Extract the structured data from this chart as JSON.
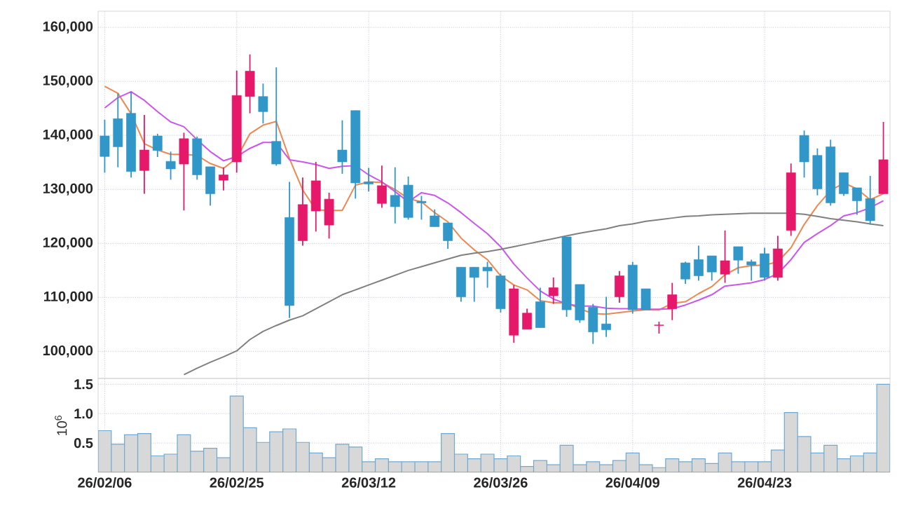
{
  "chart_data": [
    {
      "type": "candlestick",
      "ohlc": [
        [
          139900,
          142900,
          133100,
          136100
        ],
        [
          143100,
          147800,
          134100,
          137900
        ],
        [
          144100,
          148100,
          132200,
          133300
        ],
        [
          133500,
          143800,
          129200,
          137300
        ],
        [
          139900,
          140300,
          136000,
          137200
        ],
        [
          135200,
          137000,
          131800,
          133800
        ],
        [
          134700,
          140500,
          126100,
          139400
        ],
        [
          139400,
          139800,
          131800,
          132700
        ],
        [
          134200,
          134200,
          127000,
          129200
        ],
        [
          131700,
          134100,
          129800,
          132700
        ],
        [
          135100,
          152000,
          133100,
          147400
        ],
        [
          147200,
          155000,
          144100,
          151900
        ],
        [
          147200,
          149600,
          142200,
          144400
        ],
        [
          138900,
          152600,
          134400,
          134700
        ],
        [
          124800,
          131400,
          106200,
          108500
        ],
        [
          120500,
          132200,
          119600,
          127200
        ],
        [
          126000,
          135100,
          122200,
          131600
        ],
        [
          123400,
          129400,
          120900,
          128200
        ],
        [
          137300,
          142800,
          132900,
          135100
        ],
        [
          144600,
          144600,
          128300,
          131200
        ],
        [
          131400,
          134000,
          129600,
          131000
        ],
        [
          127400,
          134400,
          126600,
          130700
        ],
        [
          128900,
          134100,
          123700,
          126800
        ],
        [
          130800,
          132400,
          124400,
          124800
        ],
        [
          127800,
          128800,
          124400,
          127500
        ],
        [
          125100,
          126300,
          123100,
          123100
        ],
        [
          123800,
          123800,
          119000,
          120500
        ],
        [
          115600,
          115600,
          109200,
          110100
        ],
        [
          115600,
          115600,
          109200,
          113700
        ],
        [
          115600,
          116600,
          111800,
          114900
        ],
        [
          114000,
          114400,
          107200,
          107900
        ],
        [
          103000,
          112300,
          101600,
          111600
        ],
        [
          104100,
          107900,
          104100,
          107100
        ],
        [
          109200,
          111800,
          104400,
          104400
        ],
        [
          110300,
          113700,
          108800,
          111800
        ],
        [
          121200,
          121200,
          106400,
          107700
        ],
        [
          112400,
          112400,
          105300,
          105800
        ],
        [
          108200,
          108800,
          101400,
          103600
        ],
        [
          105100,
          110100,
          102700,
          104000
        ],
        [
          110100,
          114900,
          109000,
          114000
        ],
        [
          116000,
          116600,
          107000,
          107700
        ],
        [
          111600,
          111600,
          107700,
          107700
        ],
        [
          104800,
          105500,
          103300,
          104900
        ],
        [
          107900,
          112700,
          105800,
          110500
        ],
        [
          116400,
          116600,
          112500,
          113400
        ],
        [
          117000,
          119600,
          113100,
          114000
        ],
        [
          117700,
          117700,
          113100,
          114700
        ],
        [
          114300,
          122400,
          112700,
          116800
        ],
        [
          119400,
          119400,
          114400,
          116900
        ],
        [
          116600,
          117000,
          113100,
          116000
        ],
        [
          118100,
          119200,
          113100,
          113700
        ],
        [
          113700,
          121400,
          113100,
          119000
        ],
        [
          122400,
          134800,
          121400,
          133100
        ],
        [
          140000,
          140900,
          132200,
          135100
        ],
        [
          136300,
          137600,
          128900,
          130100
        ],
        [
          137900,
          139200,
          127000,
          127500
        ],
        [
          133100,
          133100,
          128800,
          129200
        ],
        [
          130300,
          130300,
          125300,
          127900
        ],
        [
          128300,
          132500,
          123500,
          124200
        ],
        [
          129200,
          142500,
          129200,
          135500
        ]
      ],
      "colors": [
        "#3196c8",
        "#3196c8",
        "#3196c8",
        "#e6186a",
        "#3196c8",
        "#3196c8",
        "#e6186a",
        "#3196c8",
        "#3196c8",
        "#e6186a",
        "#e6186a",
        "#e6186a",
        "#3196c8",
        "#3196c8",
        "#3196c8",
        "#e6186a",
        "#e6186a",
        "#e6186a",
        "#3196c8",
        "#3196c8",
        "#3196c8",
        "#e6186a",
        "#3196c8",
        "#3196c8",
        "#3196c8",
        "#3196c8",
        "#3196c8",
        "#3196c8",
        "#3196c8",
        "#3196c8",
        "#3196c8",
        "#e6186a",
        "#e6186a",
        "#3196c8",
        "#e6186a",
        "#3196c8",
        "#3196c8",
        "#3196c8",
        "#3196c8",
        "#e6186a",
        "#3196c8",
        "#3196c8",
        "#e6186a",
        "#e6186a",
        "#3196c8",
        "#3196c8",
        "#3196c8",
        "#e6186a",
        "#3196c8",
        "#3196c8",
        "#3196c8",
        "#e6186a",
        "#e6186a",
        "#3196c8",
        "#3196c8",
        "#3196c8",
        "#3196c8",
        "#3196c8",
        "#3196c8",
        "#e6186a"
      ],
      "series": [
        {
          "type": "line",
          "color": "#ee8850",
          "values": [
            149100,
            147800,
            144000,
            138500,
            137300,
            136500,
            136500,
            136300,
            134800,
            133900,
            135800,
            140300,
            141900,
            142600,
            135700,
            129900,
            126200,
            126100,
            126100,
            130800,
            131400,
            131300,
            130000,
            128300,
            127700,
            125700,
            124000,
            121000,
            118800,
            117000,
            114000,
            112300,
            111400,
            109400,
            109000,
            109000,
            107900,
            107000,
            106900,
            107200,
            107500,
            107700,
            107700,
            108900,
            109200,
            110700,
            112000,
            114200,
            115500,
            115900,
            116000,
            116600,
            119200,
            123500,
            127000,
            129800,
            131200,
            130100,
            128100,
            129200
          ]
        },
        {
          "type": "line",
          "color": "#cc55ee",
          "values": [
            145100,
            147000,
            148100,
            146500,
            144400,
            142500,
            141600,
            139200,
            137000,
            135300,
            136100,
            137600,
            138700,
            138700,
            135500,
            135100,
            134600,
            133900,
            134300,
            134400,
            132700,
            131400,
            129600,
            127700,
            129400,
            128900,
            127500,
            125700,
            123700,
            121800,
            119400,
            116200,
            113600,
            111200,
            109700,
            108800,
            108400,
            108400,
            108000,
            107900,
            107900,
            107800,
            107800,
            107900,
            108600,
            109500,
            110500,
            112100,
            112400,
            112700,
            113300,
            114400,
            117000,
            120200,
            121800,
            123300,
            125100,
            125700,
            126600,
            127900
          ]
        },
        {
          "type": "line",
          "color": "#808080",
          "values": [
            null,
            null,
            null,
            null,
            null,
            null,
            95700,
            96900,
            98000,
            99000,
            100100,
            102200,
            103700,
            104800,
            105800,
            106600,
            107900,
            109200,
            110500,
            111400,
            112300,
            113200,
            114100,
            115000,
            115700,
            116400,
            117100,
            117800,
            118200,
            118500,
            118900,
            119400,
            119900,
            120400,
            120900,
            121400,
            121900,
            122300,
            122700,
            123300,
            123600,
            124100,
            124400,
            124700,
            125000,
            125100,
            125300,
            125400,
            125500,
            125600,
            125600,
            125600,
            125600,
            125400,
            125000,
            124600,
            124300,
            124000,
            123600,
            123300
          ]
        }
      ],
      "ylim": [
        95000,
        163000
      ],
      "yticks": [
        {
          "value": 100000,
          "label": "100,000"
        },
        {
          "value": 110000,
          "label": "110,000"
        },
        {
          "value": 120000,
          "label": "120,000"
        },
        {
          "value": 130000,
          "label": "130,000"
        },
        {
          "value": 140000,
          "label": "140,000"
        },
        {
          "value": 150000,
          "label": "150,000"
        },
        {
          "value": 160000,
          "label": "160,000"
        }
      ],
      "grid": true,
      "tick_labels": "y"
    },
    {
      "type": "bar",
      "categories": [
        "26/02/06",
        null,
        null,
        null,
        null,
        null,
        null,
        null,
        null,
        null,
        "26/02/25",
        null,
        null,
        null,
        null,
        null,
        null,
        null,
        null,
        null,
        "26/03/12",
        null,
        null,
        null,
        null,
        null,
        null,
        null,
        null,
        null,
        "26/03/26",
        null,
        null,
        null,
        null,
        null,
        null,
        null,
        null,
        null,
        "26/04/09",
        null,
        null,
        null,
        null,
        null,
        null,
        null,
        null,
        null,
        "26/04/23",
        null,
        null,
        null,
        null,
        null,
        null,
        null,
        null,
        null
      ],
      "values": [
        0.71,
        0.48,
        0.64,
        0.66,
        0.28,
        0.31,
        0.64,
        0.36,
        0.41,
        0.25,
        1.3,
        0.76,
        0.51,
        0.69,
        0.74,
        0.51,
        0.33,
        0.25,
        0.48,
        0.43,
        0.18,
        0.23,
        0.18,
        0.18,
        0.18,
        0.18,
        0.66,
        0.31,
        0.23,
        0.31,
        0.23,
        0.28,
        0.1,
        0.2,
        0.13,
        0.46,
        0.13,
        0.18,
        0.13,
        0.2,
        0.33,
        0.13,
        0.08,
        0.23,
        0.18,
        0.23,
        0.15,
        0.33,
        0.18,
        0.18,
        0.18,
        0.38,
        1.02,
        0.61,
        0.33,
        0.46,
        0.23,
        0.28,
        0.33,
        1.5
      ],
      "color": "#d8d8d8",
      "ylabel": "10$^{6}$",
      "ylim": [
        0,
        1.6
      ],
      "yticks": [
        0.5,
        {
          "value": 1,
          "label": "1.0"
        },
        1.5
      ],
      "grid": true
    }
  ]
}
